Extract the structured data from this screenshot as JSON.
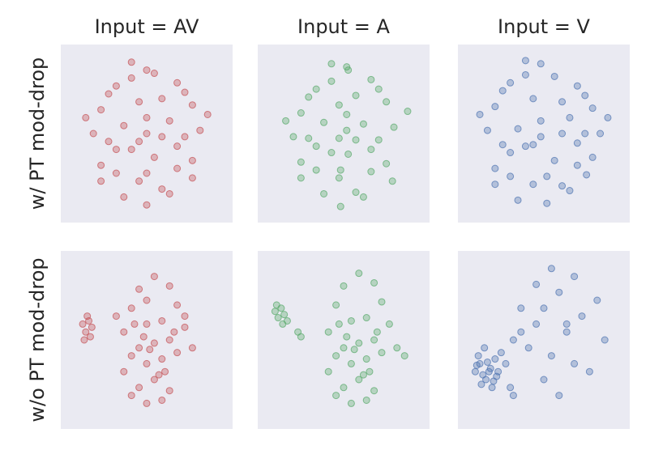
{
  "chart_data": [
    {
      "type": "scatter",
      "title": "Input = AV",
      "ylabel": "w/ PT mod-drop",
      "color": "#c44e52",
      "xlim": [
        0,
        100
      ],
      "ylim": [
        0,
        100
      ],
      "x": [
        50,
        30,
        70,
        20,
        80,
        45,
        60,
        35,
        65,
        25,
        75,
        50,
        40,
        55,
        15,
        85,
        30,
        70,
        45,
        60,
        20,
        80,
        35,
        65,
        50,
        25,
        75,
        40,
        55,
        50,
        10,
        90,
        30,
        70,
        45,
        60,
        20,
        80,
        50,
        40
      ],
      "y": [
        90,
        80,
        82,
        65,
        68,
        70,
        72,
        55,
        58,
        45,
        48,
        50,
        40,
        35,
        50,
        52,
        25,
        28,
        20,
        15,
        30,
        33,
        10,
        12,
        60,
        75,
        76,
        85,
        88,
        5,
        60,
        62,
        40,
        42,
        45,
        48,
        20,
        22,
        25,
        95
      ]
    },
    {
      "type": "scatter",
      "title": "Input = A",
      "color": "#55a868",
      "xlim": [
        0,
        100
      ],
      "ylim": [
        0,
        100
      ],
      "x": [
        52,
        32,
        68,
        22,
        78,
        47,
        58,
        37,
        63,
        27,
        73,
        52,
        42,
        53,
        17,
        83,
        32,
        68,
        47,
        58,
        22,
        78,
        37,
        63,
        52,
        27,
        73,
        42,
        53,
        48,
        12,
        92,
        32,
        68,
        47,
        58,
        22,
        82,
        48,
        42
      ],
      "y": [
        92,
        78,
        84,
        63,
        70,
        68,
        74,
        57,
        56,
        47,
        46,
        52,
        38,
        37,
        48,
        54,
        27,
        26,
        22,
        13,
        32,
        31,
        12,
        10,
        62,
        73,
        78,
        83,
        90,
        4,
        58,
        64,
        42,
        40,
        47,
        46,
        22,
        20,
        27,
        94
      ]
    },
    {
      "type": "scatter",
      "title": "Input = V",
      "color": "#4c72b0",
      "xlim": [
        0,
        100
      ],
      "ylim": [
        0,
        100
      ],
      "x": [
        48,
        28,
        72,
        18,
        82,
        43,
        62,
        33,
        67,
        23,
        77,
        48,
        38,
        57,
        13,
        87,
        28,
        72,
        43,
        62,
        18,
        82,
        33,
        67,
        48,
        23,
        77,
        38,
        57,
        52,
        8,
        92,
        28,
        72,
        43,
        62,
        18,
        78,
        52,
        38
      ],
      "y": [
        94,
        82,
        80,
        67,
        66,
        72,
        70,
        53,
        60,
        43,
        50,
        48,
        42,
        33,
        52,
        50,
        23,
        30,
        18,
        17,
        28,
        35,
        8,
        14,
        58,
        77,
        74,
        87,
        86,
        6,
        62,
        60,
        38,
        44,
        43,
        50,
        18,
        24,
        23,
        96
      ]
    },
    {
      "type": "scatter",
      "ylabel": "w/o PT mod-drop",
      "color": "#c44e52",
      "xlim": [
        0,
        100
      ],
      "ylim": [
        0,
        100
      ],
      "x": [
        55,
        45,
        65,
        40,
        70,
        50,
        60,
        35,
        75,
        45,
        55,
        65,
        40,
        50,
        60,
        70,
        35,
        80,
        45,
        55,
        50,
        60,
        40,
        65,
        8,
        10,
        12,
        14,
        9,
        11,
        13,
        50,
        75,
        30,
        58,
        62,
        48,
        52,
        42,
        68
      ],
      "y": [
        90,
        82,
        84,
        70,
        72,
        60,
        62,
        55,
        58,
        45,
        48,
        50,
        40,
        35,
        38,
        42,
        30,
        45,
        20,
        25,
        10,
        12,
        15,
        18,
        60,
        55,
        62,
        58,
        50,
        65,
        52,
        75,
        65,
        65,
        28,
        30,
        52,
        44,
        60,
        55
      ]
    },
    {
      "type": "scatter",
      "color": "#55a868",
      "xlim": [
        0,
        100
      ],
      "ylim": [
        0,
        100
      ],
      "x": [
        60,
        50,
        70,
        45,
        75,
        55,
        65,
        40,
        80,
        50,
        60,
        70,
        45,
        55,
        65,
        75,
        40,
        85,
        50,
        60,
        55,
        65,
        45,
        70,
        5,
        7,
        9,
        11,
        13,
        6,
        10,
        20,
        22,
        90,
        63,
        67,
        52,
        57,
        47,
        72
      ],
      "y": [
        92,
        84,
        86,
        72,
        74,
        62,
        64,
        55,
        60,
        45,
        48,
        50,
        40,
        35,
        38,
        42,
        30,
        45,
        20,
        25,
        10,
        12,
        15,
        18,
        68,
        64,
        70,
        66,
        62,
        72,
        60,
        55,
        52,
        40,
        28,
        30,
        52,
        44,
        60,
        55
      ]
    },
    {
      "type": "scatter",
      "color": "#4c72b0",
      "xlim": [
        0,
        100
      ],
      "ylim": [
        0,
        100
      ],
      "x": [
        5,
        8,
        10,
        12,
        15,
        18,
        20,
        7,
        9,
        11,
        13,
        16,
        19,
        22,
        6,
        14,
        17,
        25,
        30,
        35,
        40,
        28,
        45,
        50,
        55,
        60,
        65,
        70,
        75,
        80,
        85,
        90,
        50,
        60,
        70,
        45,
        55,
        65,
        35,
        30
      ],
      "y": [
        30,
        35,
        28,
        25,
        32,
        38,
        30,
        40,
        22,
        45,
        36,
        20,
        27,
        42,
        34,
        30,
        24,
        35,
        50,
        55,
        45,
        20,
        60,
        70,
        40,
        80,
        55,
        90,
        65,
        30,
        75,
        50,
        25,
        15,
        35,
        85,
        95,
        60,
        70,
        15
      ]
    }
  ]
}
